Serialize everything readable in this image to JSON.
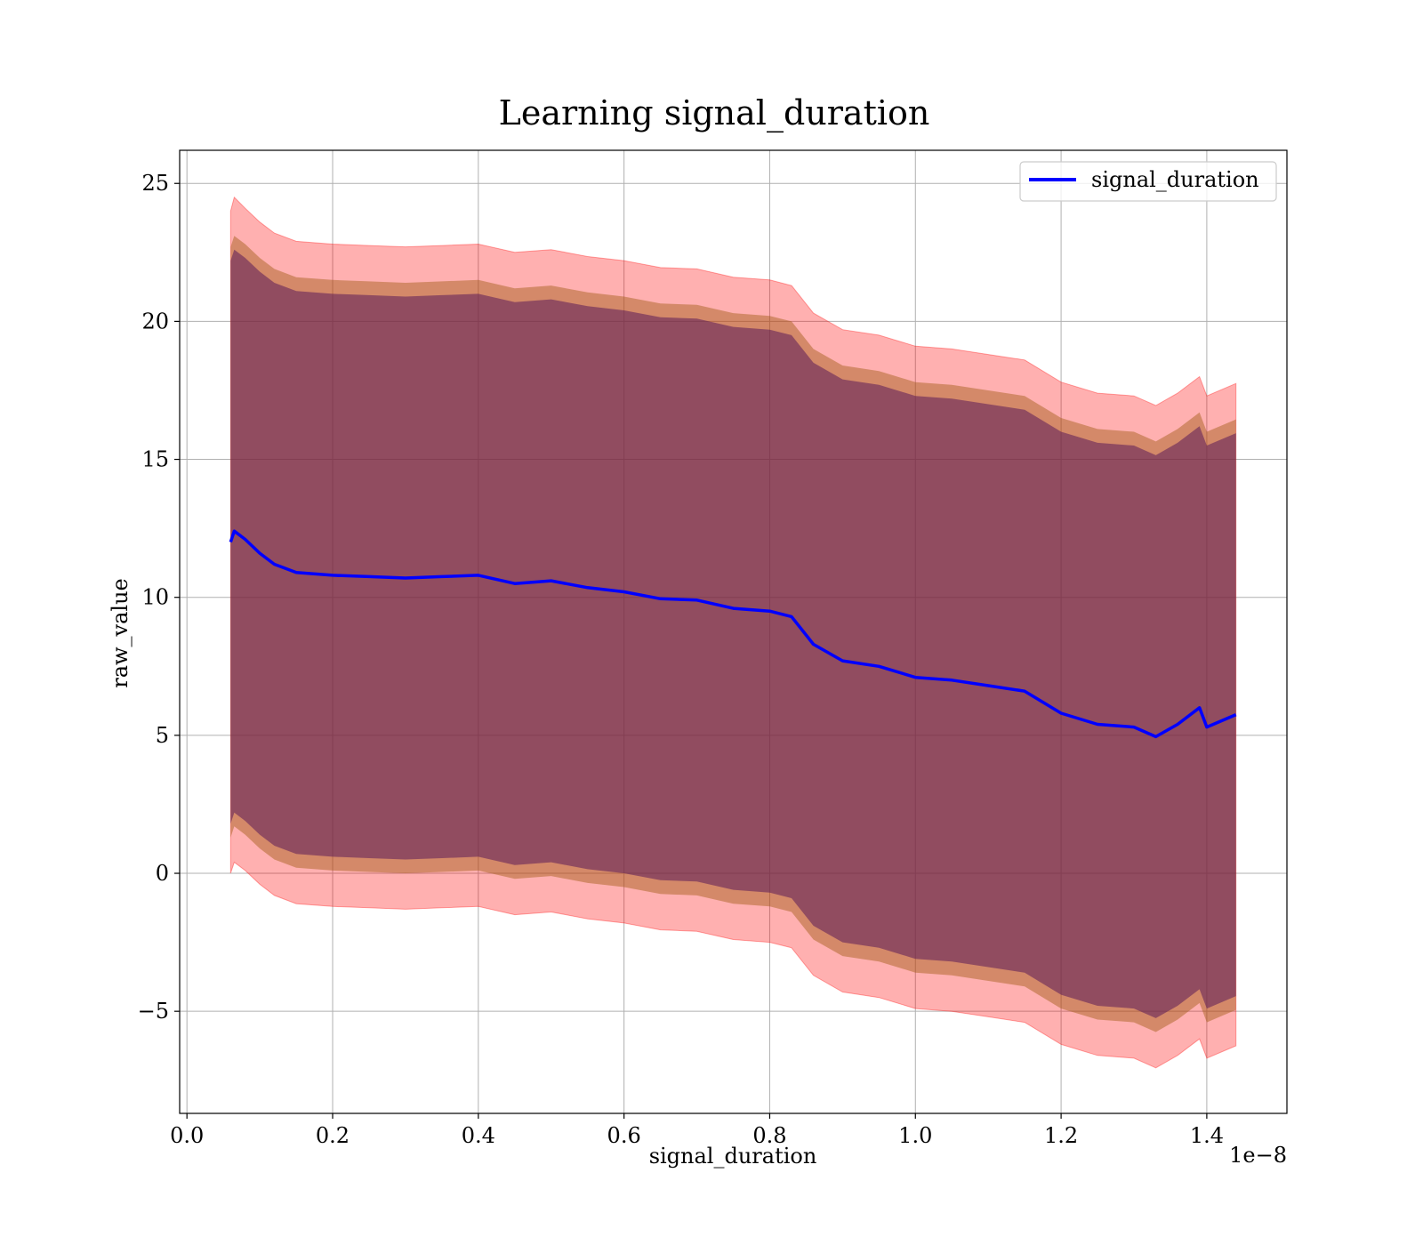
{
  "chart_data": {
    "type": "line",
    "title": "Learning signal_duration",
    "xlabel": "signal_duration",
    "ylabel": "raw_value",
    "x_offset_label": "1e−8",
    "xlim": [
      -0.01,
      1.51
    ],
    "ylim": [
      -8.7,
      26.2
    ],
    "x_ticks": [
      0.0,
      0.2,
      0.4,
      0.6,
      0.8,
      1.0,
      1.2,
      1.4
    ],
    "x_tick_labels": [
      "0.0",
      "0.2",
      "0.4",
      "0.6",
      "0.8",
      "1.0",
      "1.2",
      "1.4"
    ],
    "y_ticks": [
      -5,
      0,
      5,
      10,
      15,
      20,
      25
    ],
    "y_tick_labels": [
      "−5",
      "0",
      "5",
      "10",
      "15",
      "20",
      "25"
    ],
    "grid": true,
    "legend": {
      "position": "top-right",
      "entries": [
        "signal_duration"
      ]
    },
    "colors": {
      "line": "#0000ff",
      "band_outer": "#ff0000",
      "band_middle": "#a05a14",
      "band_inner": "#5a1a5a"
    },
    "series": [
      {
        "name": "signal_duration",
        "x": [
          0.06,
          0.065,
          0.08,
          0.1,
          0.12,
          0.15,
          0.2,
          0.25,
          0.3,
          0.35,
          0.4,
          0.45,
          0.5,
          0.55,
          0.6,
          0.65,
          0.7,
          0.75,
          0.8,
          0.83,
          0.86,
          0.9,
          0.95,
          1.0,
          1.05,
          1.1,
          1.15,
          1.2,
          1.25,
          1.3,
          1.33,
          1.36,
          1.39,
          1.4,
          1.44
        ],
        "y": [
          12.0,
          12.4,
          12.1,
          11.6,
          11.2,
          10.9,
          10.8,
          10.75,
          10.7,
          10.75,
          10.8,
          10.5,
          10.6,
          10.35,
          10.2,
          9.95,
          9.9,
          9.6,
          9.5,
          9.3,
          8.3,
          7.7,
          7.5,
          7.1,
          7.0,
          6.8,
          6.6,
          5.8,
          5.4,
          5.3,
          4.95,
          5.4,
          6.0,
          5.3,
          5.75
        ]
      }
    ],
    "bands": [
      {
        "role": "outer",
        "x": [
          0.06,
          0.065,
          0.08,
          0.1,
          0.12,
          0.15,
          0.2,
          0.25,
          0.3,
          0.35,
          0.4,
          0.45,
          0.5,
          0.55,
          0.6,
          0.65,
          0.7,
          0.75,
          0.8,
          0.83,
          0.86,
          0.9,
          0.95,
          1.0,
          1.05,
          1.1,
          1.15,
          1.2,
          1.25,
          1.3,
          1.33,
          1.36,
          1.39,
          1.4,
          1.44
        ],
        "upper": [
          24.0,
          24.5,
          24.1,
          23.6,
          23.2,
          22.9,
          22.8,
          22.75,
          22.7,
          22.75,
          22.8,
          22.5,
          22.6,
          22.35,
          22.2,
          21.95,
          21.9,
          21.6,
          21.5,
          21.3,
          20.3,
          19.7,
          19.5,
          19.1,
          19.0,
          18.8,
          18.6,
          17.8,
          17.4,
          17.3,
          16.95,
          17.4,
          18.0,
          17.3,
          17.75
        ],
        "lower": [
          0.0,
          0.4,
          0.1,
          -0.4,
          -0.8,
          -1.1,
          -1.2,
          -1.25,
          -1.3,
          -1.25,
          -1.2,
          -1.5,
          -1.4,
          -1.65,
          -1.8,
          -2.05,
          -2.1,
          -2.4,
          -2.5,
          -2.7,
          -3.7,
          -4.3,
          -4.5,
          -4.9,
          -5.0,
          -5.2,
          -5.4,
          -6.2,
          -6.6,
          -6.7,
          -7.05,
          -6.6,
          -6.0,
          -6.7,
          -6.25
        ]
      },
      {
        "role": "middle",
        "x": [
          0.06,
          0.065,
          0.08,
          0.1,
          0.12,
          0.15,
          0.2,
          0.25,
          0.3,
          0.35,
          0.4,
          0.45,
          0.5,
          0.55,
          0.6,
          0.65,
          0.7,
          0.75,
          0.8,
          0.83,
          0.86,
          0.9,
          0.95,
          1.0,
          1.05,
          1.1,
          1.15,
          1.2,
          1.25,
          1.3,
          1.33,
          1.36,
          1.39,
          1.4,
          1.44
        ],
        "upper": [
          22.7,
          23.1,
          22.8,
          22.3,
          21.9,
          21.6,
          21.5,
          21.45,
          21.4,
          21.45,
          21.5,
          21.2,
          21.3,
          21.05,
          20.9,
          20.65,
          20.6,
          20.3,
          20.2,
          20.0,
          19.0,
          18.4,
          18.2,
          17.8,
          17.7,
          17.5,
          17.3,
          16.5,
          16.1,
          16.0,
          15.65,
          16.1,
          16.7,
          16.0,
          16.45
        ]
      },
      {
        "role": "inner",
        "x": [
          0.06,
          0.065,
          0.08,
          0.1,
          0.12,
          0.15,
          0.2,
          0.25,
          0.3,
          0.35,
          0.4,
          0.45,
          0.5,
          0.55,
          0.6,
          0.65,
          0.7,
          0.75,
          0.8,
          0.83,
          0.86,
          0.9,
          0.95,
          1.0,
          1.05,
          1.1,
          1.15,
          1.2,
          1.25,
          1.3,
          1.33,
          1.36,
          1.39,
          1.4,
          1.44
        ],
        "upper": [
          22.2,
          22.6,
          22.3,
          21.8,
          21.4,
          21.1,
          21.0,
          20.95,
          20.9,
          20.95,
          21.0,
          20.7,
          20.8,
          20.55,
          20.4,
          20.15,
          20.1,
          19.8,
          19.7,
          19.5,
          18.5,
          17.9,
          17.7,
          17.3,
          17.2,
          17.0,
          16.8,
          16.0,
          15.6,
          15.5,
          15.15,
          15.6,
          16.2,
          15.5,
          15.95
        ],
        "lower": [
          1.8,
          2.2,
          1.9,
          1.4,
          1.0,
          0.7,
          0.6,
          0.55,
          0.5,
          0.55,
          0.6,
          0.3,
          0.4,
          0.15,
          0.0,
          -0.25,
          -0.3,
          -0.6,
          -0.7,
          -0.9,
          -1.9,
          -2.5,
          -2.7,
          -3.1,
          -3.2,
          -3.4,
          -3.6,
          -4.4,
          -4.8,
          -4.9,
          -5.25,
          -4.8,
          -4.2,
          -4.9,
          -4.45
        ]
      }
    ]
  }
}
